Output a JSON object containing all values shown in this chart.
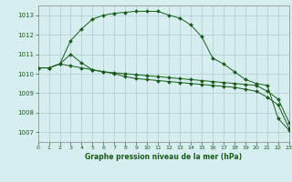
{
  "title": "Graphe pression niveau de la mer (hPa)",
  "background_color": "#d6eef0",
  "grid_color": "#aacccc",
  "line_color": "#1a5c1a",
  "xlim": [
    0,
    23
  ],
  "ylim": [
    1006.5,
    1013.5
  ],
  "yticks": [
    1007,
    1008,
    1009,
    1010,
    1011,
    1012,
    1013
  ],
  "xticks": [
    0,
    1,
    2,
    3,
    4,
    5,
    6,
    7,
    8,
    9,
    10,
    11,
    12,
    13,
    14,
    15,
    16,
    17,
    18,
    19,
    20,
    21,
    22,
    23
  ],
  "series": [
    [
      1010.3,
      1010.3,
      1010.5,
      1011.0,
      1010.55,
      1010.2,
      1010.1,
      1010.0,
      1009.85,
      1009.75,
      1009.7,
      1009.65,
      1009.6,
      1009.55,
      1009.5,
      1009.45,
      1009.4,
      1009.35,
      1009.3,
      1009.2,
      1009.1,
      1008.8,
      1008.4,
      1007.2
    ],
    [
      1010.3,
      1010.3,
      1010.5,
      1011.7,
      1012.3,
      1012.8,
      1013.0,
      1013.1,
      1013.15,
      1013.2,
      1013.2,
      1013.2,
      1013.0,
      1012.85,
      1012.5,
      1011.9,
      1010.8,
      1010.5,
      1010.1,
      1009.7,
      1009.5,
      1009.4,
      1007.7,
      1007.1
    ],
    [
      1010.3,
      1010.3,
      1010.5,
      1010.4,
      1010.3,
      1010.2,
      1010.1,
      1010.05,
      1010.0,
      1009.95,
      1009.9,
      1009.85,
      1009.8,
      1009.75,
      1009.7,
      1009.65,
      1009.6,
      1009.55,
      1009.5,
      1009.45,
      1009.4,
      1009.1,
      1008.7,
      1007.5
    ]
  ]
}
